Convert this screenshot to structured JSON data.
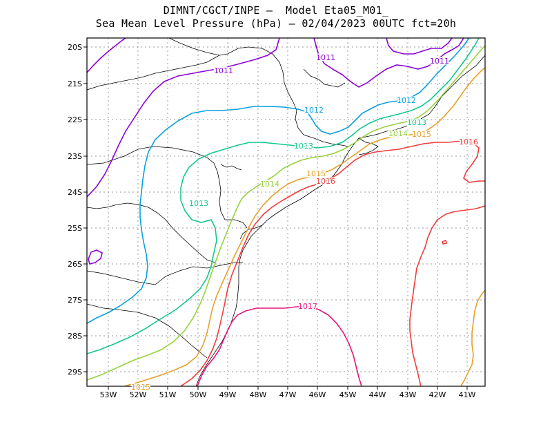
{
  "header": {
    "line1": "DIMNT/CGCT/INPE –  Model Eta05_M01_",
    "line2": "Sea Mean Level Pressure (hPa) – 02/04/2023 00UTC fct=20h"
  },
  "map": {
    "lon_ticks": [
      "53W",
      "52W",
      "51W",
      "50W",
      "49W",
      "48W",
      "47W",
      "46W",
      "45W",
      "44W",
      "43W",
      "42W",
      "41W"
    ],
    "lat_ticks": [
      "20S",
      "21S",
      "22S",
      "23S",
      "24S",
      "25S",
      "26S",
      "27S",
      "28S",
      "29S"
    ],
    "contour_labels": [
      {
        "text": "1011",
        "color": "#8b00d6"
      },
      {
        "text": "1011",
        "color": "#8b00d6"
      },
      {
        "text": "1011",
        "color": "#8b00d6"
      },
      {
        "text": "1012",
        "color": "#0aa0e0"
      },
      {
        "text": "1012",
        "color": "#0aa0e0"
      },
      {
        "text": "1013",
        "color": "#13c88c"
      },
      {
        "text": "1013",
        "color": "#13c88c"
      },
      {
        "text": "1013",
        "color": "#13c88c"
      },
      {
        "text": "1014",
        "color": "#96d23c"
      },
      {
        "text": "1014",
        "color": "#96d23c"
      },
      {
        "text": "1015",
        "color": "#e6a028"
      },
      {
        "text": "1015",
        "color": "#e6a028"
      },
      {
        "text": "1015",
        "color": "#e6a028"
      },
      {
        "text": "1016",
        "color": "#f03c3c"
      },
      {
        "text": "1016",
        "color": "#f03c3c"
      },
      {
        "text": "1017",
        "color": "#e6147a"
      }
    ]
  },
  "colors": {
    "c1011": "#8b00d6",
    "c1012": "#0aa0e0",
    "c1013": "#13c88c",
    "c1014": "#96d23c",
    "c1015": "#e6a028",
    "c1016": "#f03c3c",
    "c1017": "#e6147a",
    "coast": "#000000",
    "grid": "#9a9a9a"
  }
}
